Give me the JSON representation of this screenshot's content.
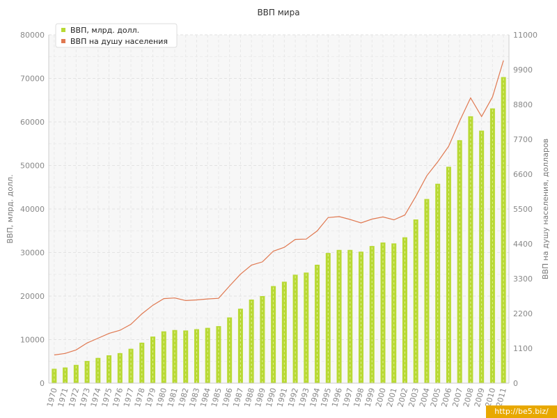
{
  "chart_data": {
    "type": "bar",
    "title": "ВВП мира",
    "xlabel": "",
    "ylabel": "ВВП, млрд. долл.",
    "y2label": "ВВП на душу населения, долларов",
    "ylim": [
      0,
      80000
    ],
    "y2lim": [
      0,
      11000
    ],
    "yticks": [
      "0",
      "10000",
      "20000",
      "30000",
      "40000",
      "50000",
      "60000",
      "70000",
      "80000"
    ],
    "y2ticks": [
      "0",
      "1100",
      "2200",
      "3300",
      "4400",
      "5500",
      "6600",
      "7700",
      "8800",
      "9900",
      "11000"
    ],
    "grid": true,
    "legend_position": "top-left",
    "categories": [
      "1970",
      "1971",
      "1972",
      "1973",
      "1974",
      "1975",
      "1976",
      "1977",
      "1978",
      "1979",
      "1980",
      "1981",
      "1982",
      "1983",
      "1984",
      "1985",
      "1986",
      "1987",
      "1988",
      "1989",
      "1990",
      "1991",
      "1992",
      "1993",
      "1994",
      "1995",
      "1996",
      "1997",
      "1998",
      "1999",
      "2000",
      "2001",
      "2002",
      "2003",
      "2004",
      "2005",
      "2006",
      "2007",
      "2008",
      "2009",
      "2010",
      "2011"
    ],
    "series": [
      {
        "name": "ВВП, млрд. долл.",
        "type": "bar",
        "axis": "left",
        "color": "#b8d934",
        "values": [
          3300,
          3600,
          4200,
          5100,
          5800,
          6400,
          6900,
          7900,
          9300,
          10700,
          11900,
          12200,
          12100,
          12400,
          12700,
          13100,
          15100,
          17100,
          19200,
          20000,
          22300,
          23300,
          24900,
          25400,
          27200,
          29900,
          30600,
          30600,
          30200,
          31500,
          32300,
          32100,
          33500,
          37600,
          42300,
          45800,
          49700,
          55800,
          61300,
          58000,
          63100,
          70300
        ]
      },
      {
        "name": "ВВП на душу населения",
        "type": "line",
        "axis": "right",
        "color": "#e07850",
        "values": [
          890,
          940,
          1050,
          1270,
          1420,
          1570,
          1670,
          1860,
          2190,
          2460,
          2670,
          2690,
          2610,
          2630,
          2660,
          2680,
          3070,
          3440,
          3730,
          3830,
          4170,
          4290,
          4540,
          4550,
          4810,
          5230,
          5260,
          5170,
          5060,
          5180,
          5250,
          5160,
          5310,
          5900,
          6550,
          6990,
          7480,
          8280,
          9010,
          8420,
          9040,
          10190
        ]
      }
    ]
  },
  "watermark": "http://be5.biz/"
}
